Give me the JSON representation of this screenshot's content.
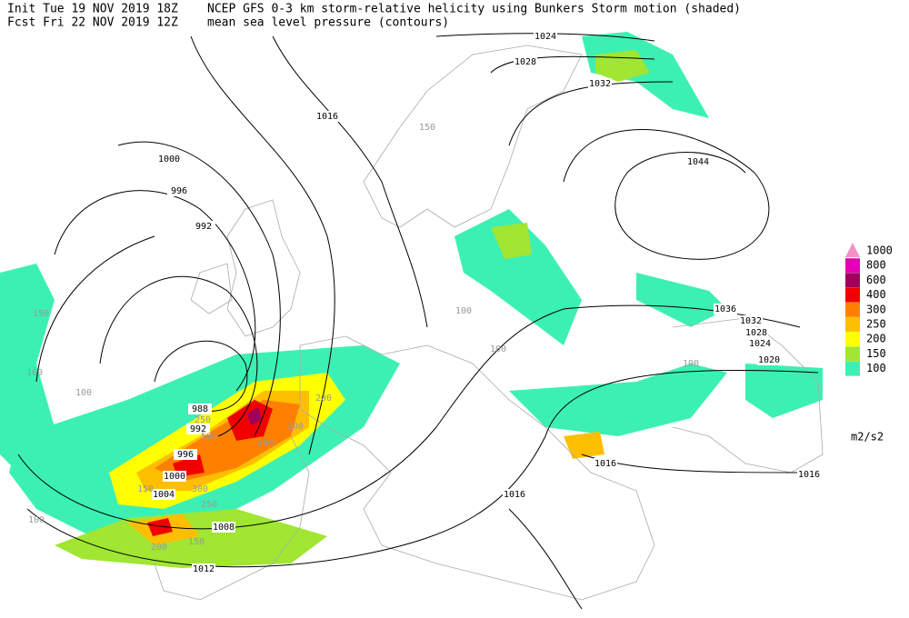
{
  "header": {
    "init": "Init  Tue 19 NOV 2019 18Z",
    "fcst": "Fcst Fri 22 NOV 2019 12Z",
    "title": "NCEP GFS 0-3 km storm-relative helicity using Bunkers Storm motion (shaded)",
    "subtitle": "mean sea level pressure (contours)"
  },
  "legend": {
    "levels": [
      {
        "value": 1000,
        "color": "#f490c8"
      },
      {
        "value": 800,
        "color": "#e600b4"
      },
      {
        "value": 600,
        "color": "#a0005a"
      },
      {
        "value": 400,
        "color": "#f00000"
      },
      {
        "value": 300,
        "color": "#ff8000"
      },
      {
        "value": 250,
        "color": "#ffbe00"
      },
      {
        "value": 200,
        "color": "#ffff00"
      },
      {
        "value": 150,
        "color": "#a0e632"
      },
      {
        "value": 100,
        "color": "#3cf0b4"
      }
    ],
    "unit": "m2/s2"
  },
  "contour_labels": [
    1024,
    1028,
    1032,
    1016,
    1044,
    1000,
    996,
    992,
    1036,
    1032,
    1028,
    1024,
    1020,
    988,
    992,
    996,
    1000,
    1004,
    1008,
    1012,
    1016,
    1016,
    1016
  ],
  "helicity_labels": [
    150,
    100,
    100,
    100,
    150,
    250,
    300,
    400,
    500,
    250,
    300,
    200,
    150,
    100,
    100,
    150,
    200,
    100
  ]
}
